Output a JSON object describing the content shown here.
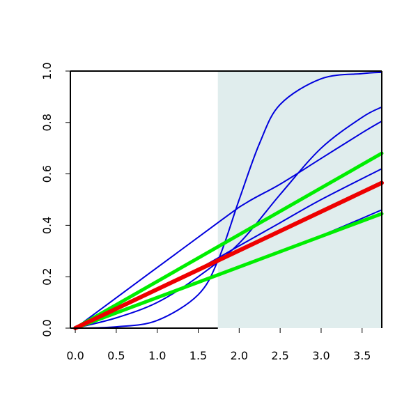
{
  "chart_data": {
    "type": "line",
    "title": "",
    "xlabel": "",
    "ylabel": "",
    "xlim": [
      -0.06,
      3.74
    ],
    "ylim": [
      0,
      1
    ],
    "x_ticks": [
      "0.0",
      "0.5",
      "1.0",
      "1.5",
      "2.0",
      "2.5",
      "3.0",
      "3.5"
    ],
    "y_ticks": [
      "0.0",
      "0.2",
      "0.4",
      "0.6",
      "0.8",
      "1.0"
    ],
    "grid": false,
    "shaded_region": {
      "x_from": 1.74,
      "x_to": 3.74,
      "color": "#e0eded"
    },
    "series": [
      {
        "color": "#0000dd",
        "x": [
          0,
          1.74,
          2.1,
          2.5,
          3.0,
          3.5,
          3.74
        ],
        "y": [
          0,
          0.41,
          0.49,
          0.56,
          0.66,
          0.76,
          0.805
        ]
      },
      {
        "color": "#0000dd",
        "x": [
          0,
          1.0,
          1.5,
          2.0,
          2.5,
          3.0,
          3.74
        ],
        "y": [
          0,
          0.15,
          0.23,
          0.32,
          0.41,
          0.5,
          0.62
        ]
      },
      {
        "color": "#0000dd",
        "x": [
          0,
          1.0,
          1.74,
          2.0,
          2.5,
          3.0,
          3.74
        ],
        "y": [
          0,
          0.12,
          0.21,
          0.24,
          0.3,
          0.36,
          0.46
        ]
      },
      {
        "color": "#0000dd",
        "x": [
          0,
          0.5,
          1.0,
          1.5,
          2.0,
          2.5,
          3.0,
          3.5,
          3.74
        ],
        "y": [
          0,
          0.04,
          0.1,
          0.2,
          0.33,
          0.52,
          0.7,
          0.82,
          0.86
        ]
      },
      {
        "color": "#0000dd",
        "x": [
          0,
          0.5,
          1.0,
          1.5,
          1.75,
          2.0,
          2.25,
          2.5,
          3.0,
          3.5,
          3.74
        ],
        "y": [
          0,
          0.005,
          0.03,
          0.13,
          0.27,
          0.5,
          0.72,
          0.87,
          0.97,
          0.99,
          0.995
        ]
      },
      {
        "color": "#00ee00",
        "width": 5,
        "x": [
          0,
          3.74
        ],
        "y": [
          0,
          0.68
        ]
      },
      {
        "color": "#00ee00",
        "width": 5,
        "x": [
          0,
          3.74
        ],
        "y": [
          0,
          0.445
        ]
      },
      {
        "color": "#ee0000",
        "width": 6,
        "x": [
          0,
          3.74
        ],
        "y": [
          0,
          0.565
        ]
      }
    ]
  }
}
